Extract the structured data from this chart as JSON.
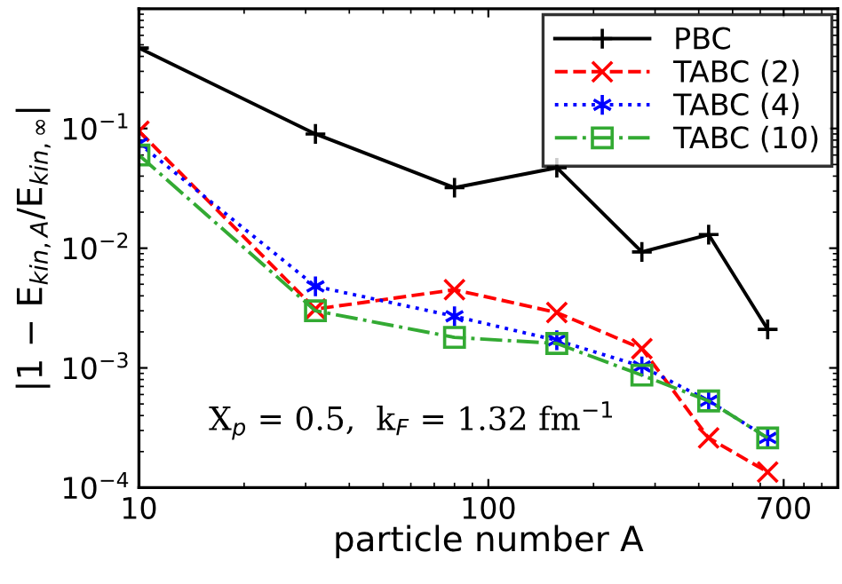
{
  "chart_data": {
    "type": "line",
    "xlabel": "particle number A",
    "ylabel": "|1 − E$_{kin,A}$/E$_{kin,∞}$|",
    "x": [
      10,
      32,
      80,
      157,
      275,
      427,
      630
    ],
    "series": [
      {
        "name": "PBC",
        "color": "#000000",
        "marker": "cross",
        "line_style": "solid",
        "values": [
          0.47,
          0.09,
          0.032,
          0.047,
          0.0093,
          0.013,
          0.0021
        ]
      },
      {
        "name": "TABC (2)",
        "color": "#ff0000",
        "marker": "cross",
        "line_style": "dashed",
        "values": [
          0.095,
          0.0031,
          0.0045,
          0.0029,
          0.00145,
          0.00026,
          0.000135
        ]
      },
      {
        "name": "TABC (4)",
        "color": "#0000ff",
        "marker": "cross",
        "line_style": "dotted",
        "values": [
          0.075,
          0.0048,
          0.0027,
          0.0017,
          0.00103,
          0.00053,
          0.00026
        ]
      },
      {
        "name": "TABC (10)",
        "color": "#33aa33",
        "marker": "square",
        "line_style": "dashdot",
        "values": [
          0.06,
          0.003,
          0.0018,
          0.0016,
          0.00087,
          0.00053,
          0.00026
        ]
      }
    ],
    "log": "xy",
    "xlim": [
      10,
      1000
    ],
    "xticks": [
      10,
      100,
      700
    ],
    "ylim": [
      0.0001,
      1
    ],
    "yticks": [
      {
        "value": 0.0001,
        "label": "10$^{−4}$"
      },
      {
        "value": 0.001,
        "label": "10$^{−3}$"
      },
      {
        "value": 0.01,
        "label": "10$^{−2}$"
      },
      {
        "value": 0.1,
        "label": "10$^{−1}$"
      }
    ],
    "grid": false,
    "legend": "top right",
    "annotations": [
      "X$_{p}$ = 0.5,  k$_{F}$ = 1.32 fm$^{−1}$"
    ]
  }
}
